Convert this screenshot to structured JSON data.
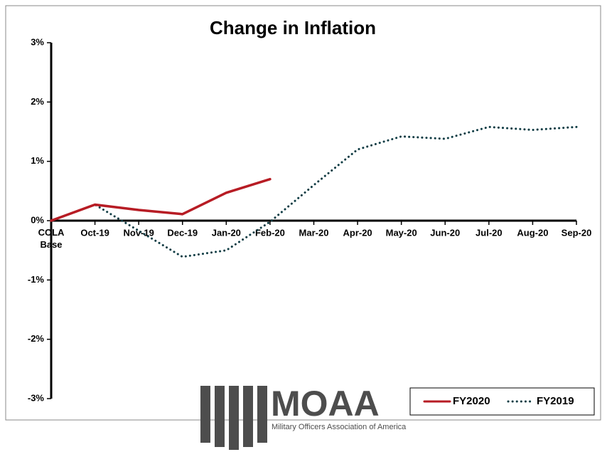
{
  "chart_data": {
    "type": "line",
    "title": "Change in Inflation",
    "categories": [
      "COLA Base",
      "Oct-19",
      "Nov-19",
      "Dec-19",
      "Jan-20",
      "Feb-20",
      "Mar-20",
      "Apr-20",
      "May-20",
      "Jun-20",
      "Jul-20",
      "Aug-20",
      "Sep-20"
    ],
    "series": [
      {
        "name": "FY2020",
        "color": "#b71c24",
        "dash": "solid",
        "values": [
          0,
          0.27,
          0.18,
          0.11,
          0.47,
          0.7,
          null,
          null,
          null,
          null,
          null,
          null,
          null
        ]
      },
      {
        "name": "FY2019",
        "color": "#0e3b43",
        "dash": "dotted",
        "values": [
          0,
          0.27,
          -0.17,
          -0.61,
          -0.5,
          -0.02,
          0.6,
          1.2,
          1.42,
          1.38,
          1.58,
          1.53,
          1.58
        ]
      }
    ],
    "ylim": [
      -3,
      3
    ],
    "yticks": [
      {
        "value": -3,
        "label": "-3%"
      },
      {
        "value": -2,
        "label": "-2%"
      },
      {
        "value": -1,
        "label": "-1%"
      },
      {
        "value": 0,
        "label": "0%"
      },
      {
        "value": 1,
        "label": "1%"
      },
      {
        "value": 2,
        "label": "2%"
      },
      {
        "value": 3,
        "label": "3%"
      }
    ],
    "legend": "lower right",
    "logo": {
      "name": "MOAA",
      "tagline": "Military Officers Association of America"
    }
  }
}
